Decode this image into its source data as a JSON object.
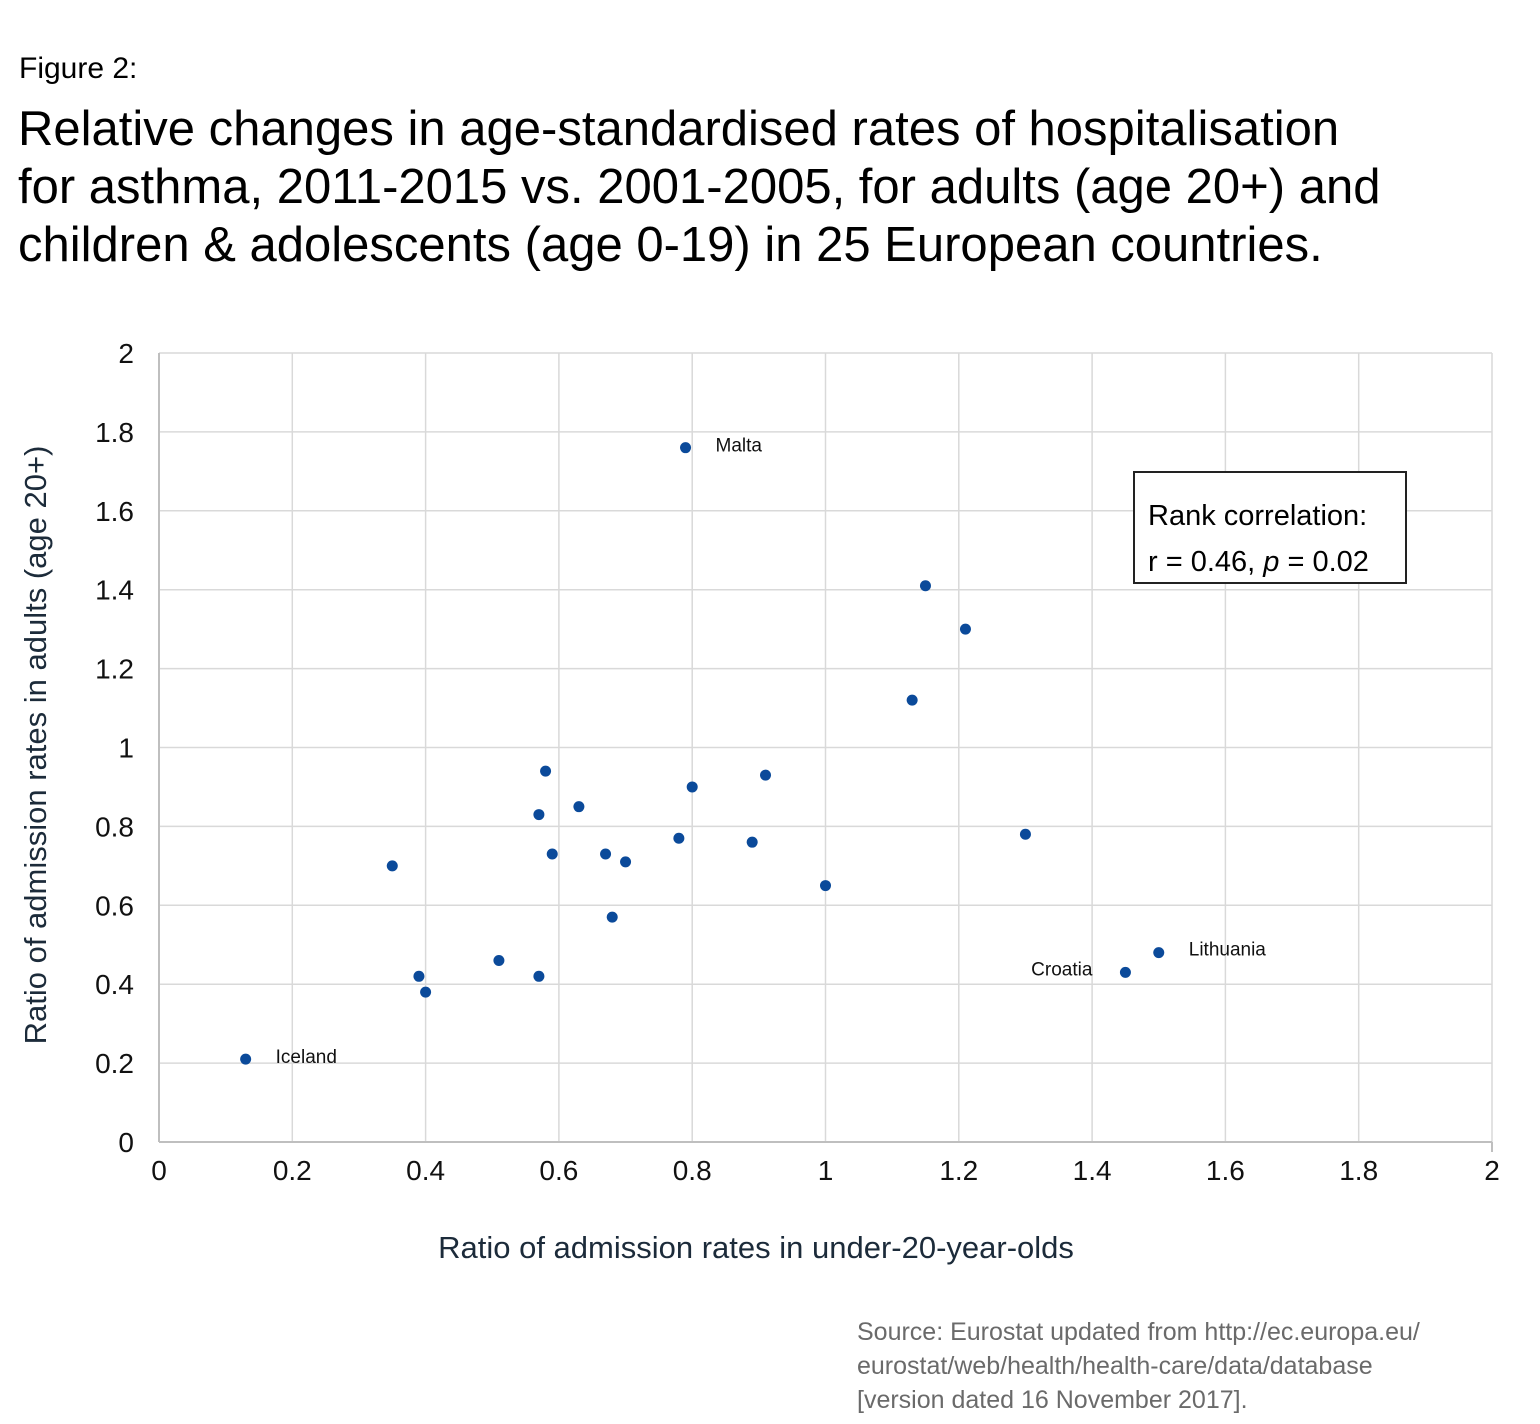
{
  "figure_label": "Figure 2:",
  "title_lines": [
    "Relative changes in age-standardised rates of hospitalisation",
    "for asthma, 2011-2015 vs. 2001-2005, for adults (age 20+) and",
    "children & adolescents (age 0-19) in 25 European countries."
  ],
  "correlation_box": {
    "line1": "Rank correlation:",
    "line2_prefix": "r = 0.46, ",
    "line2_p": "p",
    "line2_suffix": " = 0.02"
  },
  "source_lines": [
    "Source: Eurostat updated from http://ec.europa.eu/",
    "eurostat/web/health/health-care/data/database",
    "[version dated 16 November 2017]."
  ],
  "chart_data": {
    "type": "scatter",
    "title": "",
    "xlabel": "Ratio of admission rates in under-20-year-olds",
    "ylabel": "Ratio of admission rates in adults (age 20+)",
    "xlim": [
      0,
      2
    ],
    "ylim": [
      0,
      2
    ],
    "x_ticks": [
      "0",
      "0.2",
      "0.4",
      "0.6",
      "0.8",
      "1",
      "1.2",
      "1.4",
      "1.6",
      "1.8",
      "2"
    ],
    "y_ticks": [
      "0",
      "0.2",
      "0.4",
      "0.6",
      "0.8",
      "1",
      "1.2",
      "1.4",
      "1.6",
      "1.8",
      "2"
    ],
    "grid": true,
    "marker_color": "#0b4a9a",
    "points": [
      {
        "x": 0.13,
        "y": 0.21,
        "label": "Iceland"
      },
      {
        "x": 0.35,
        "y": 0.7,
        "label": ""
      },
      {
        "x": 0.39,
        "y": 0.42,
        "label": ""
      },
      {
        "x": 0.4,
        "y": 0.38,
        "label": ""
      },
      {
        "x": 0.51,
        "y": 0.46,
        "label": ""
      },
      {
        "x": 0.57,
        "y": 0.42,
        "label": ""
      },
      {
        "x": 0.57,
        "y": 0.83,
        "label": ""
      },
      {
        "x": 0.58,
        "y": 0.94,
        "label": ""
      },
      {
        "x": 0.59,
        "y": 0.73,
        "label": ""
      },
      {
        "x": 0.63,
        "y": 0.85,
        "label": ""
      },
      {
        "x": 0.67,
        "y": 0.73,
        "label": ""
      },
      {
        "x": 0.68,
        "y": 0.57,
        "label": ""
      },
      {
        "x": 0.7,
        "y": 0.71,
        "label": ""
      },
      {
        "x": 0.78,
        "y": 0.77,
        "label": ""
      },
      {
        "x": 0.79,
        "y": 1.76,
        "label": "Malta"
      },
      {
        "x": 0.8,
        "y": 0.9,
        "label": ""
      },
      {
        "x": 0.89,
        "y": 0.76,
        "label": ""
      },
      {
        "x": 0.91,
        "y": 0.93,
        "label": ""
      },
      {
        "x": 1.0,
        "y": 0.65,
        "label": ""
      },
      {
        "x": 1.13,
        "y": 1.12,
        "label": ""
      },
      {
        "x": 1.15,
        "y": 1.41,
        "label": ""
      },
      {
        "x": 1.21,
        "y": 1.3,
        "label": ""
      },
      {
        "x": 1.3,
        "y": 0.78,
        "label": ""
      },
      {
        "x": 1.45,
        "y": 0.43,
        "label": "Croatia"
      },
      {
        "x": 1.5,
        "y": 0.48,
        "label": "Lithuania"
      }
    ]
  }
}
